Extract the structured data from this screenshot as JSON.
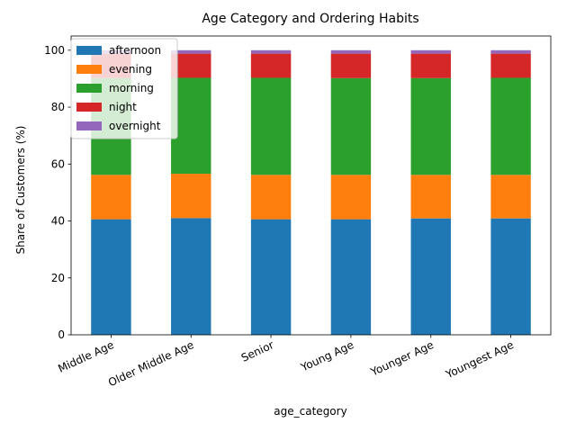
{
  "chart_data": {
    "type": "bar",
    "stacked": true,
    "title": "Age Category and Ordering Habits",
    "xlabel": "age_category",
    "ylabel": "Share of Customers (%)",
    "ylim": [
      0,
      105
    ],
    "yticks": [
      0,
      20,
      40,
      60,
      80,
      100
    ],
    "categories": [
      "Middle Age",
      "Older Middle Age",
      "Senior",
      "Young Age",
      "Younger Age",
      "Youngest Age"
    ],
    "series": [
      {
        "name": "afternoon",
        "color": "#1f77b4",
        "values": [
          40.6,
          41.0,
          40.6,
          40.6,
          40.9,
          40.9
        ]
      },
      {
        "name": "evening",
        "color": "#ff7f0e",
        "values": [
          15.6,
          15.6,
          15.6,
          15.6,
          15.3,
          15.3
        ]
      },
      {
        "name": "morning",
        "color": "#2ca02c",
        "values": [
          34.0,
          33.7,
          34.1,
          34.0,
          34.0,
          34.1
        ]
      },
      {
        "name": "night",
        "color": "#d62728",
        "values": [
          8.6,
          8.5,
          8.5,
          8.6,
          8.6,
          8.5
        ]
      },
      {
        "name": "overnight",
        "color": "#9467bd",
        "values": [
          1.2,
          1.2,
          1.2,
          1.2,
          1.2,
          1.2
        ]
      }
    ],
    "legend": "upper-left",
    "grid": false
  }
}
